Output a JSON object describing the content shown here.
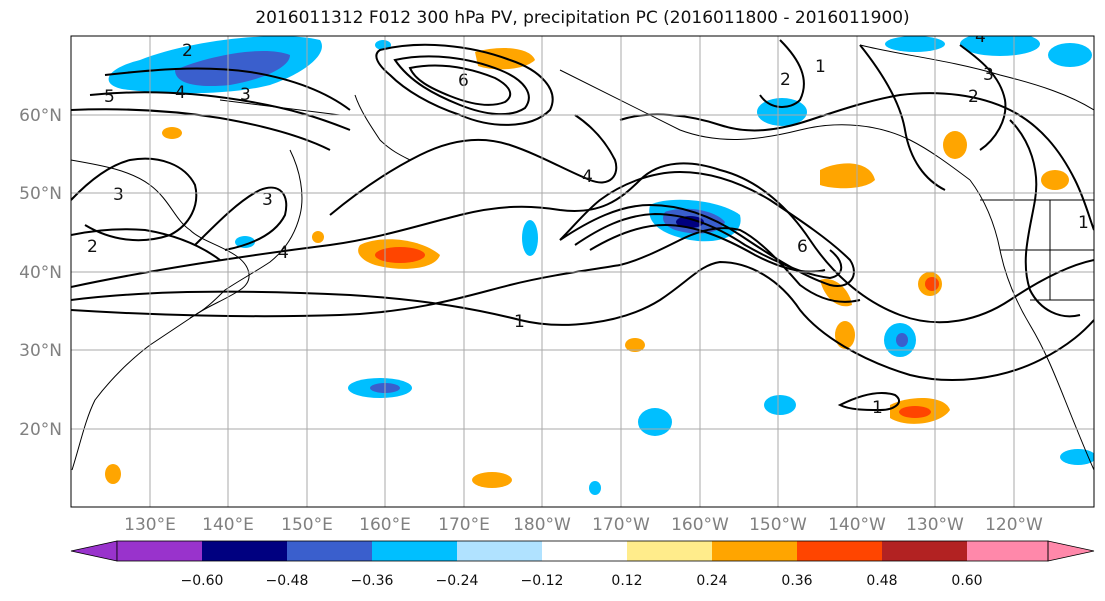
{
  "title": "2016011312 F012 300 hPa PV, precipitation PC (2016011800 - 2016011900)",
  "lat_labels": [
    "60°N",
    "50°N",
    "40°N",
    "30°N",
    "20°N"
  ],
  "lon_labels": [
    "130°E",
    "140°E",
    "150°E",
    "160°E",
    "170°E",
    "180°W",
    "170°W",
    "160°W",
    "150°W",
    "140°W",
    "130°W",
    "120°W"
  ],
  "colorbar": {
    "ticks": [
      "−0.60",
      "−0.48",
      "−0.36",
      "−0.24",
      "−0.12",
      "0.12",
      "0.24",
      "0.36",
      "0.48",
      "0.60"
    ],
    "colors": [
      "#9933cc",
      "#000080",
      "#3a5fcd",
      "#00bfff",
      "#b0e2ff",
      "#ffffff",
      "#ffec8b",
      "#ffa500",
      "#ff4500",
      "#b22222",
      "#ff88aa"
    ]
  },
  "contour_labels": [
    "2",
    "5",
    "4",
    "3",
    "6",
    "3",
    "2",
    "4",
    "1",
    "6",
    "2",
    "3",
    "4",
    "1",
    "1",
    "1",
    "2",
    "4",
    "3"
  ],
  "colors": {
    "grid": "#aaaaaa",
    "contour": "#000000"
  }
}
